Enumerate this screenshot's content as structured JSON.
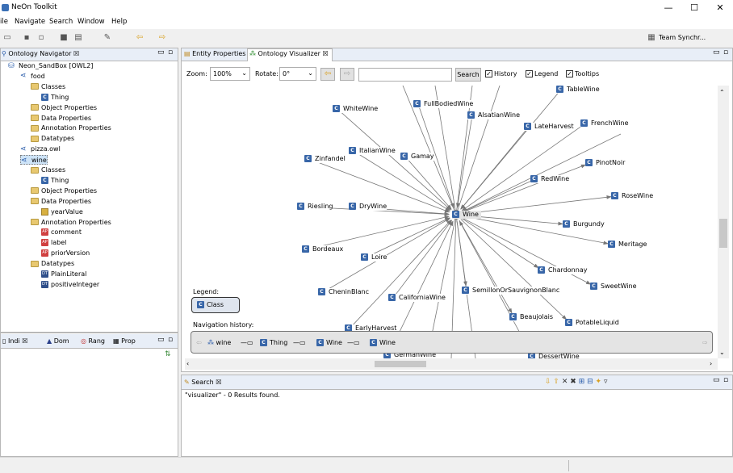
{
  "window": {
    "title": "NeOn Toolkit",
    "minimize": "—",
    "maximize": "☐",
    "close": "✕"
  },
  "menu": [
    "ile",
    "Navigate",
    "Search",
    "Window",
    "Help"
  ],
  "toolbar_right": {
    "team_sync": "Team Synchr..."
  },
  "navigator": {
    "tab": "Ontology Navigator",
    "tab_close": "☒",
    "items": [
      {
        "label": "Neon_SandBox [OWL2]",
        "icon": "project"
      },
      {
        "label": "food",
        "icon": "ontology"
      },
      {
        "label": "Classes",
        "icon": "folder"
      },
      {
        "label": "Thing",
        "icon": "class"
      },
      {
        "label": "Object Properties",
        "icon": "folder"
      },
      {
        "label": "Data Properties",
        "icon": "folder"
      },
      {
        "label": "Annotation Properties",
        "icon": "folder"
      },
      {
        "label": "Datatypes",
        "icon": "folder"
      },
      {
        "label": "pizza.owl",
        "icon": "ontology"
      },
      {
        "label": "wine",
        "icon": "ontology"
      },
      {
        "label": "Classes",
        "icon": "folder"
      },
      {
        "label": "Thing",
        "icon": "class"
      },
      {
        "label": "Object Properties",
        "icon": "folder"
      },
      {
        "label": "Data Properties",
        "icon": "folder"
      },
      {
        "label": "yearValue",
        "icon": "data-property"
      },
      {
        "label": "Annotation Properties",
        "icon": "folder"
      },
      {
        "label": "comment",
        "icon": "annotation"
      },
      {
        "label": "label",
        "icon": "annotation"
      },
      {
        "label": "priorVersion",
        "icon": "annotation"
      },
      {
        "label": "Datatypes",
        "icon": "folder"
      },
      {
        "label": "PlainLiteral",
        "icon": "datatype"
      },
      {
        "label": "positiveInteger",
        "icon": "datatype"
      }
    ]
  },
  "bottom_left_tabs": [
    "Indi",
    "Dom",
    "Rang",
    "Prop"
  ],
  "editor_tabs": {
    "entity": "Entity Properties",
    "visualizer": "Ontology Visualizer"
  },
  "viz_toolbar": {
    "zoom_label": "Zoom:",
    "zoom_value": "100%",
    "rotate_label": "Rotate:",
    "rotate_value": "0°",
    "search_value": "",
    "search_button": "Search",
    "history": "History",
    "legend": "Legend",
    "tooltips": "Tooltips"
  },
  "graph": {
    "center": "Wine",
    "nodes": [
      "WhiteWine",
      "FullBodiedWine",
      "AlsatianWine",
      "LateHarvest",
      "FrenchWine",
      "TableWine",
      "ItalianWine",
      "Gamay",
      "Zinfandel",
      "PinotNoir",
      "RedWine",
      "RoseWine",
      "Riesling",
      "DryWine",
      "Burgundy",
      "Meritage",
      "Bordeaux",
      "Loire",
      "Chardonnay",
      "SweetWine",
      "CheninBlanc",
      "CaliforniaWine",
      "SemillonOrSauvignonBlanc",
      "Beaujolais",
      "PotableLiquid",
      "EarlyHarvest",
      "GermanWine",
      "DessertWine"
    ]
  },
  "legend": {
    "title": "Legend:",
    "class_label": "Class"
  },
  "navigation": {
    "title": "Navigation history:",
    "items": [
      "wine",
      "Thing",
      "Wine",
      "Wine"
    ]
  },
  "search_view": {
    "tab": "Search",
    "result": "\"visualizer\" - 0 Results found."
  }
}
